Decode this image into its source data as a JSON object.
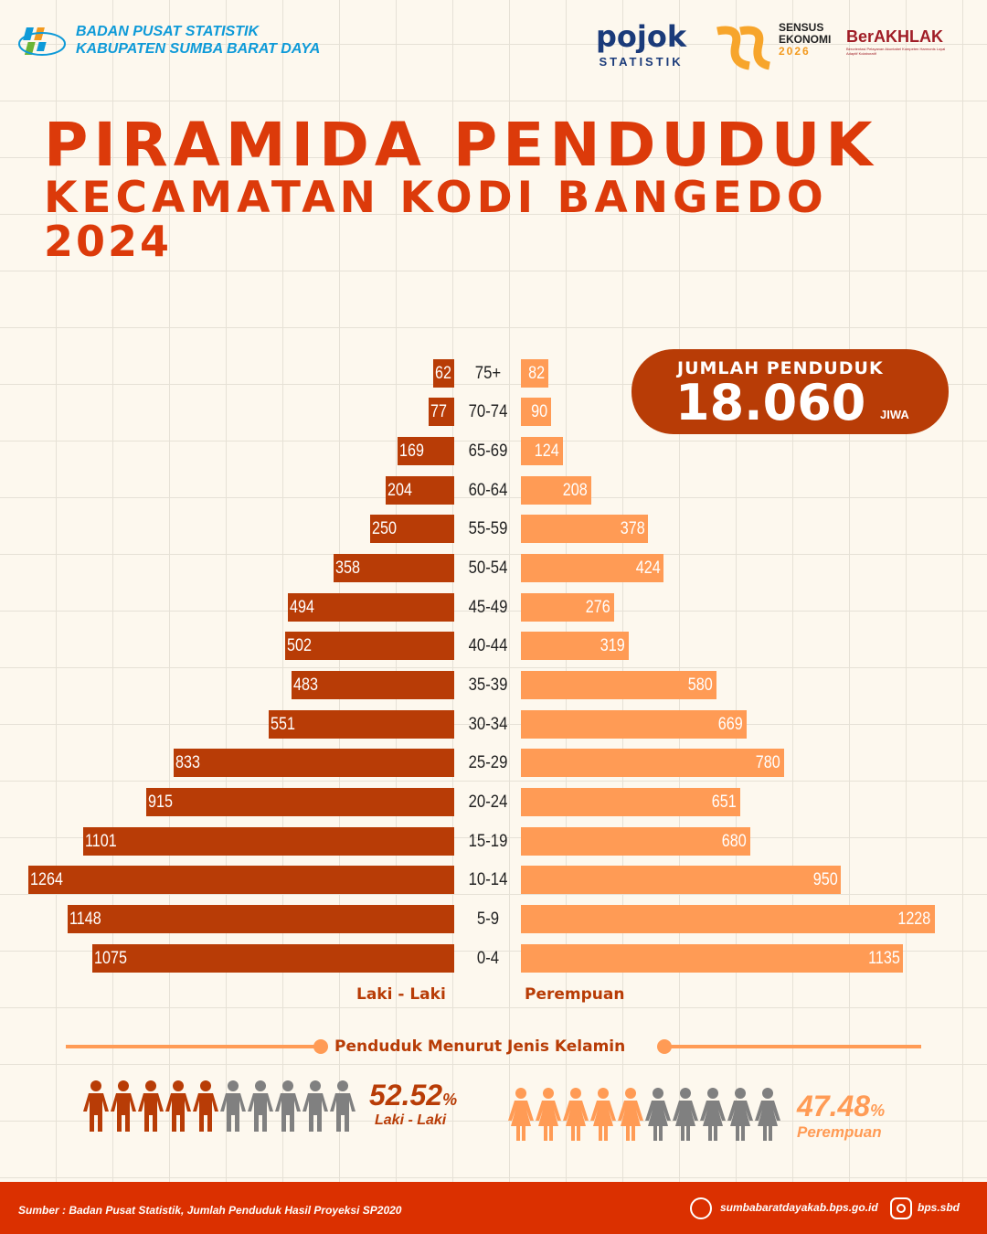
{
  "header": {
    "org_line1": "BADAN PUSAT STATISTIK",
    "org_line2": "KABUPATEN SUMBA BARAT DAYA",
    "logos": {
      "pojok": "pojok",
      "pojok_sub": "STATISTIK",
      "sensus_1": "SENSUS",
      "sensus_2": "EKONOMI",
      "sensus_year": "2026",
      "berakhlak": "BerAKHLAK",
      "berakhlak_tag": "Berorientasi Pelayanan Akuntabel Kompeten Harmonis Loyal Adaptif Kolaboratif"
    }
  },
  "title": {
    "line1": "PIRAMIDA PENDUDUK",
    "line2": "KECAMATAN KODI BANGEDO",
    "line3": "2024"
  },
  "total": {
    "label": "JUMLAH PENDUDUK",
    "value": "18.060",
    "unit": "JIWA"
  },
  "chart_data": {
    "type": "bar",
    "orientation": "horizontal-pyramid",
    "categories": [
      "75+",
      "70-74",
      "65-69",
      "60-64",
      "55-59",
      "50-54",
      "45-49",
      "40-44",
      "35-39",
      "30-34",
      "25-29",
      "20-24",
      "15-19",
      "10-14",
      "5-9",
      "0-4"
    ],
    "series": [
      {
        "name": "Laki - Laki",
        "color": "#b83c06",
        "values": [
          62,
          77,
          169,
          204,
          250,
          358,
          494,
          502,
          483,
          551,
          833,
          915,
          1101,
          1264,
          1148,
          1075
        ]
      },
      {
        "name": "Perempuan",
        "color": "#ff9b55",
        "values": [
          82,
          90,
          124,
          208,
          378,
          424,
          276,
          319,
          580,
          669,
          780,
          651,
          680,
          950,
          1228,
          1135
        ]
      }
    ],
    "xlabel_left": "Laki - Laki",
    "xlabel_right": "Perempuan"
  },
  "gender": {
    "title": "Penduduk Menurut Jenis Kelamin",
    "male_pct": "52.52",
    "male_label": "Laki - Laki",
    "female_pct": "47.48",
    "female_label": "Perempuan",
    "pct_sign": "%",
    "male_fraction": 0.5252,
    "female_fraction": 0.4748
  },
  "footer": {
    "source": "Sumber : Badan Pusat Statistik, Jumlah Penduduk Hasil Proyeksi SP2020",
    "website": "sumbabaratdayakab.bps.go.id",
    "instagram": "bps.sbd"
  }
}
